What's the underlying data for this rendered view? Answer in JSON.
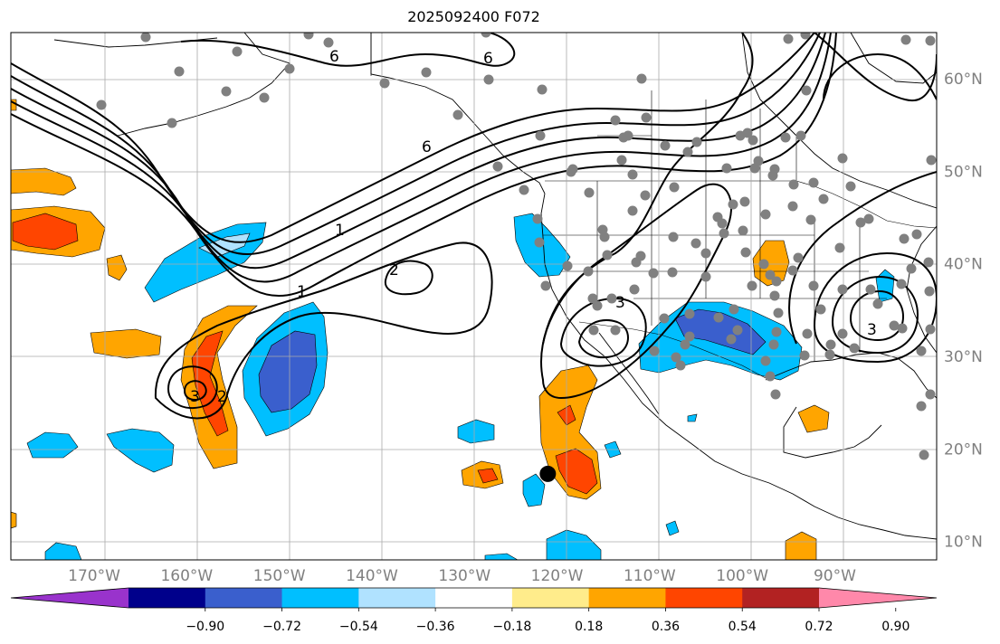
{
  "title": "2025092400 F072",
  "map": {
    "lon_labels": [
      "170°W",
      "160°W",
      "150°W",
      "140°W",
      "130°W",
      "120°W",
      "110°W",
      "100°W",
      "90°W"
    ],
    "lon_values": [
      -170,
      -160,
      -150,
      -140,
      -130,
      -120,
      -110,
      -100,
      -90
    ],
    "lat_labels": [
      "10°N",
      "20°N",
      "30°N",
      "40°N",
      "50°N",
      "60°N"
    ],
    "lat_values": [
      10,
      20,
      30,
      40,
      50,
      60
    ],
    "extent": {
      "lon_min": -179,
      "lon_max": -79,
      "lat_min": 8,
      "lat_max": 65
    },
    "contour_labels": [
      "6",
      "6",
      "6",
      "1",
      "1",
      "2",
      "2",
      "3",
      "3",
      "3"
    ],
    "station_marker": {
      "lon": -121,
      "lat": 17.3
    }
  },
  "colorbar": {
    "labels": [
      "−0.90",
      "−0.72",
      "−0.54",
      "−0.36",
      "−0.18",
      "0.18",
      "0.36",
      "0.54",
      "0.72",
      "0.90"
    ],
    "colors": [
      "#9933cc",
      "#00008b",
      "#3a5fcd",
      "#00bfff",
      "#b0e2ff",
      "#ffffff",
      "#ffec8b",
      "#ffa500",
      "#ff4500",
      "#b22222",
      "#ff88aa"
    ]
  },
  "colors": {
    "grid": "#aaaaaa",
    "coast": "#000000",
    "contour": "#000000",
    "dot": "#808080"
  }
}
